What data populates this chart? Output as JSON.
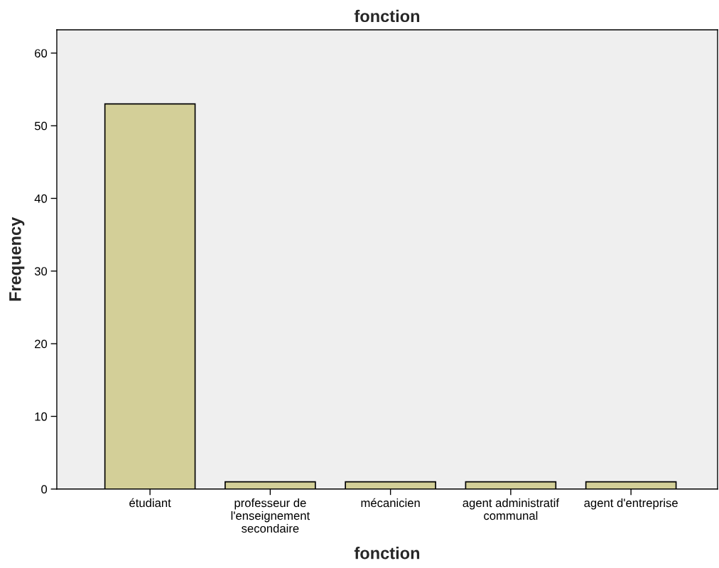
{
  "chart_data": {
    "type": "bar",
    "title": "fonction",
    "xlabel": "fonction",
    "ylabel": "Frequency",
    "categories": [
      "étudiant",
      "professeur de\nl'enseignement\nsecondaire",
      "mécanicien",
      "agent administratif\ncommunal",
      "agent d'entreprise"
    ],
    "values": [
      53,
      1,
      1,
      1,
      1
    ],
    "color": "#d3cf98",
    "ylim": [
      0,
      63.2
    ],
    "yticks": [
      0,
      10,
      20,
      30,
      40,
      50,
      60
    ],
    "grid": false
  }
}
